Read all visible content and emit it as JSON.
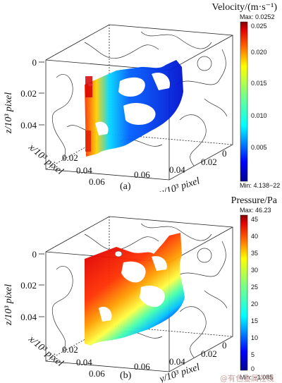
{
  "figure": {
    "panels": [
      {
        "id": "a",
        "caption": "(a)",
        "colorbar": {
          "title": "Velocity/(m·s⁻¹)",
          "max_label": "Max: 0.0252",
          "min_label": "Min: 4.138−22",
          "ticks": [
            "0.025",
            "0.020",
            "0.015",
            "0.010",
            "0.005"
          ]
        },
        "axes": {
          "z_title": "z/10³ pixel",
          "x_title": "x/10³ pixel",
          "y_title": "y/10³ pixel",
          "z_ticks": [
            "0",
            "0.02",
            "0.04"
          ],
          "x_ticks": [
            "0.02",
            "0.04",
            "0.06"
          ],
          "y_ticks": [
            "0.06",
            "0.04",
            "0.02",
            "0"
          ]
        }
      },
      {
        "id": "b",
        "caption": "(b)",
        "colorbar": {
          "title": "Pressure/Pa",
          "max_label": "Max: 46.23",
          "min_label": "Min: −1.085",
          "ticks": [
            "45",
            "40",
            "35",
            "30",
            "25",
            "20",
            "15",
            "10",
            "5",
            "0"
          ]
        },
        "axes": {
          "z_title": "z/10³ pixel",
          "x_title": "x/10³ pixel",
          "y_title": "y/10³ pixel",
          "z_ticks": [
            "0",
            "0.02",
            "0.04"
          ],
          "x_ticks": [
            "0.02",
            "0.04",
            "0.06"
          ],
          "y_ticks": [
            "0.06",
            "0.04",
            "0.02",
            "0"
          ]
        }
      }
    ],
    "watermark": "@有色金属在线",
    "colormap": [
      "#00008f",
      "#0000ff",
      "#0080ff",
      "#00ffff",
      "#80ff80",
      "#ffff00",
      "#ff8000",
      "#ff0000",
      "#800000"
    ]
  }
}
